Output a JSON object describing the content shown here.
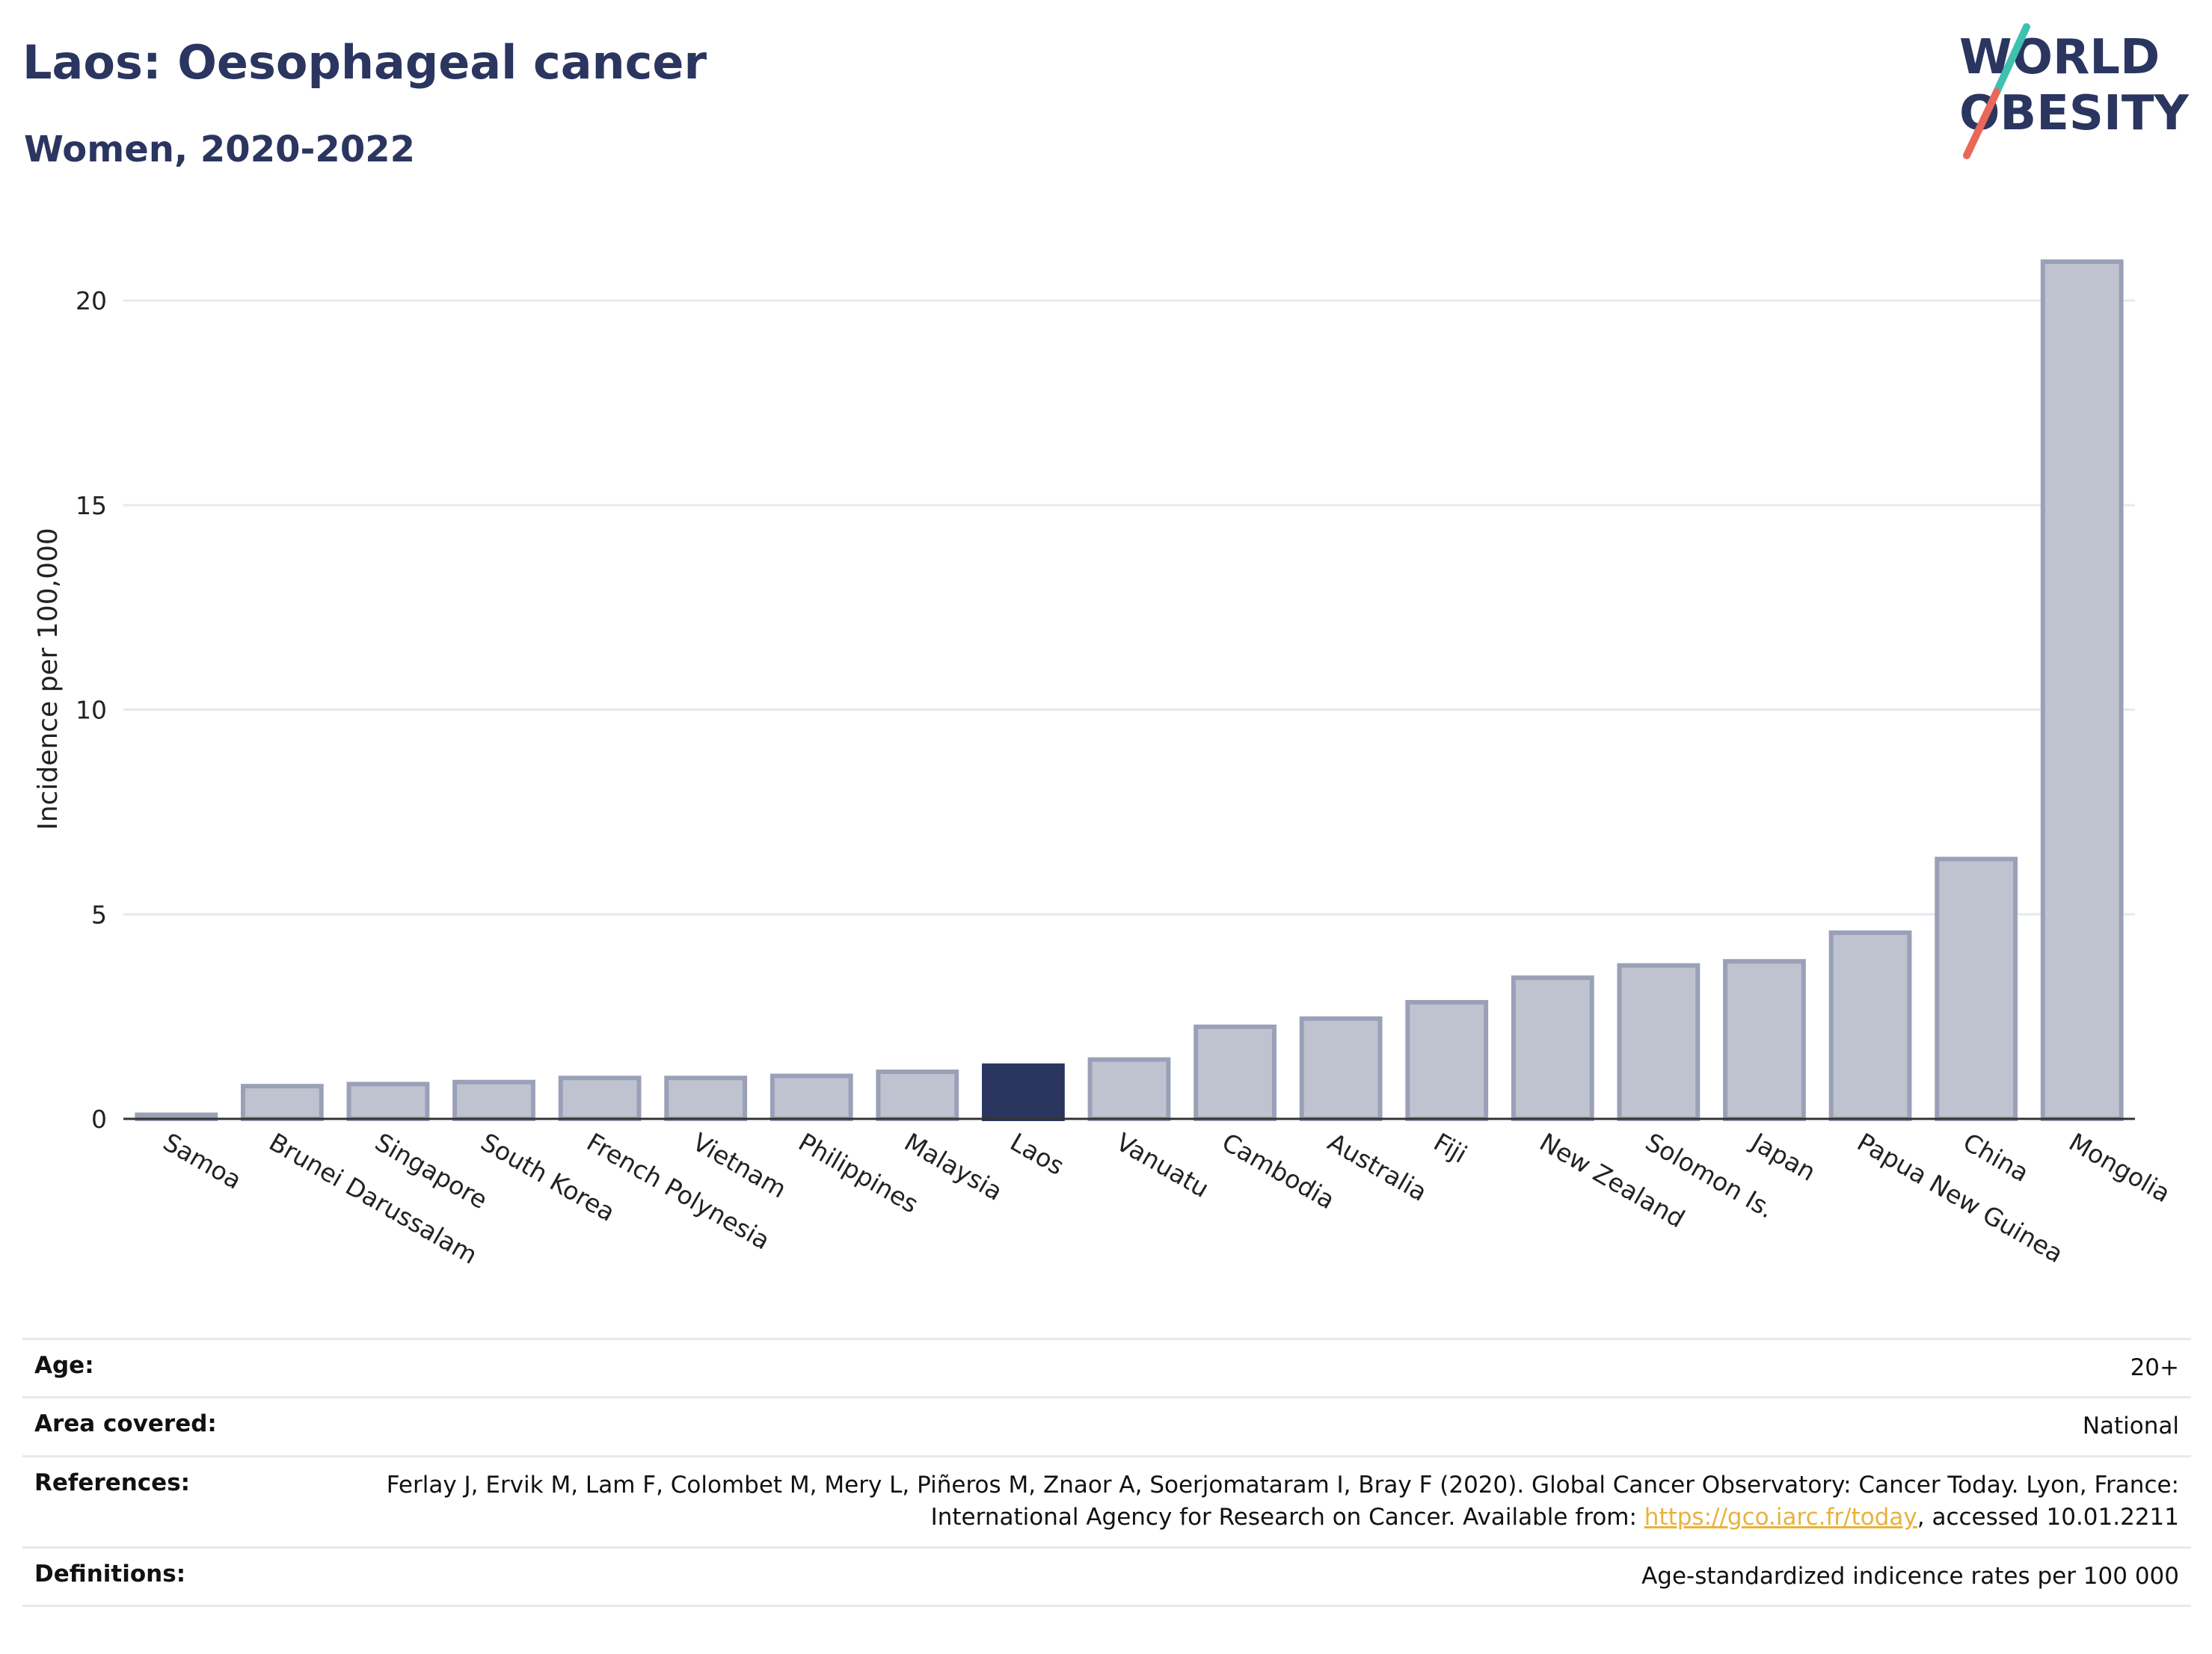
{
  "header": {
    "title": "Laos: Oesophageal cancer",
    "subtitle": "Women, 2020-2022"
  },
  "logo": {
    "line1": "WORLD",
    "line2": "OBESITY",
    "accent_teal": "#3fc1b0",
    "accent_red": "#e8685a"
  },
  "colors": {
    "bar": "#bfc3d0",
    "bar_stroke": "#9aa0b8",
    "highlight": "#2a3560",
    "grid": "#e7e9f0"
  },
  "chart_data": {
    "type": "bar",
    "ylabel": "Incidence per 100,000",
    "xlabel": "",
    "ylim": [
      0,
      21.5
    ],
    "yticks": [
      0,
      5,
      10,
      15,
      20
    ],
    "grid": true,
    "highlight": "Laos",
    "categories": [
      "Samoa",
      "Brunei Darussalam",
      "Singapore",
      "South Korea",
      "French Polynesia",
      "Vietnam",
      "Philippines",
      "Malaysia",
      "Laos",
      "Vanuatu",
      "Cambodia",
      "Australia",
      "Fiji",
      "New Zealand",
      "Solomon Is.",
      "Japan",
      "Papua New Guinea",
      "China",
      "Mongolia"
    ],
    "values": [
      0.1,
      0.8,
      0.85,
      0.9,
      1.0,
      1.0,
      1.05,
      1.15,
      1.3,
      1.45,
      2.25,
      2.45,
      2.85,
      3.45,
      3.75,
      3.85,
      4.55,
      6.35,
      20.95
    ]
  },
  "info": {
    "rows": [
      {
        "key": "Age:",
        "value": "20+"
      },
      {
        "key": "Area covered:",
        "value": "National"
      },
      {
        "key": "References:",
        "value": "Ferlay J, Ervik M, Lam F, Colombet M, Mery L, Piñeros M, Znaor A, Soerjomataram I, Bray F (2020). Global Cancer Observatory: Cancer Today. Lyon, France: International Agency for Research on Cancer. Available from:",
        "link": "https://gco.iarc.fr/today",
        "suffix": ", accessed 10.01.2211"
      },
      {
        "key": "Definitions:",
        "value": "Age-standardized indicence rates per 100 000"
      }
    ]
  }
}
